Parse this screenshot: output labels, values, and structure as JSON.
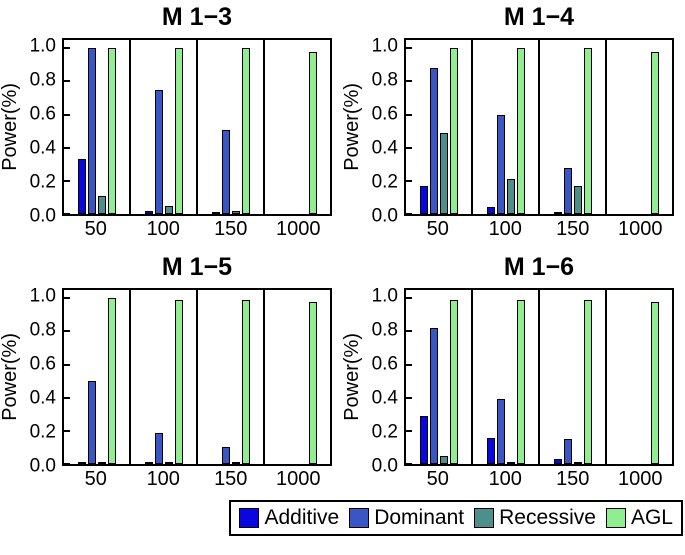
{
  "legend": {
    "items": [
      {
        "label": "Additive",
        "color": "#0a06e0"
      },
      {
        "label": "Dominant",
        "color": "#3a55c4"
      },
      {
        "label": "Recessive",
        "color": "#4d8f8d"
      },
      {
        "label": "AGL",
        "color": "#90ee90"
      }
    ]
  },
  "chart_data": [
    {
      "type": "bar",
      "title": "M 1−3",
      "ylabel": "Power(%)",
      "categories": [
        "50",
        "100",
        "150",
        "1000"
      ],
      "ylim": [
        0,
        1.05
      ],
      "yticks": [
        0.0,
        0.2,
        0.4,
        0.6,
        0.8,
        1.0
      ],
      "series": [
        {
          "name": "Additive",
          "color": "#0a06e0",
          "values": [
            0.33,
            0.02,
            0.01,
            0.0
          ]
        },
        {
          "name": "Dominant",
          "color": "#3a55c4",
          "values": [
            1.0,
            0.75,
            0.51,
            0.0
          ]
        },
        {
          "name": "Recessive",
          "color": "#4d8f8d",
          "values": [
            0.11,
            0.05,
            0.02,
            0.0
          ]
        },
        {
          "name": "AGL",
          "color": "#90ee90",
          "values": [
            1.0,
            1.0,
            1.0,
            0.98
          ]
        }
      ]
    },
    {
      "type": "bar",
      "title": "M 1−4",
      "ylabel": "Power(%)",
      "categories": [
        "50",
        "100",
        "150",
        "1000"
      ],
      "ylim": [
        0,
        1.05
      ],
      "yticks": [
        0.0,
        0.2,
        0.4,
        0.6,
        0.8,
        1.0
      ],
      "series": [
        {
          "name": "Additive",
          "color": "#0a06e0",
          "values": [
            0.17,
            0.04,
            0.01,
            0.0
          ]
        },
        {
          "name": "Dominant",
          "color": "#3a55c4",
          "values": [
            0.88,
            0.6,
            0.28,
            0.0
          ]
        },
        {
          "name": "Recessive",
          "color": "#4d8f8d",
          "values": [
            0.49,
            0.21,
            0.17,
            0.0
          ]
        },
        {
          "name": "AGL",
          "color": "#90ee90",
          "values": [
            1.0,
            1.0,
            1.0,
            0.98
          ]
        }
      ]
    },
    {
      "type": "bar",
      "title": "M 1−5",
      "ylabel": "Power(%)",
      "categories": [
        "50",
        "100",
        "150",
        "1000"
      ],
      "ylim": [
        0,
        1.05
      ],
      "yticks": [
        0.0,
        0.2,
        0.4,
        0.6,
        0.8,
        1.0
      ],
      "series": [
        {
          "name": "Additive",
          "color": "#0a06e0",
          "values": [
            0.01,
            0.01,
            0.0,
            0.0
          ]
        },
        {
          "name": "Dominant",
          "color": "#3a55c4",
          "values": [
            0.5,
            0.19,
            0.1,
            0.0
          ]
        },
        {
          "name": "Recessive",
          "color": "#4d8f8d",
          "values": [
            0.01,
            0.01,
            0.01,
            0.0
          ]
        },
        {
          "name": "AGL",
          "color": "#90ee90",
          "values": [
            1.0,
            0.99,
            0.99,
            0.98
          ]
        }
      ]
    },
    {
      "type": "bar",
      "title": "M 1−6",
      "ylabel": "Power(%)",
      "categories": [
        "50",
        "100",
        "150",
        "1000"
      ],
      "ylim": [
        0,
        1.05
      ],
      "yticks": [
        0.0,
        0.2,
        0.4,
        0.6,
        0.8,
        1.0
      ],
      "series": [
        {
          "name": "Additive",
          "color": "#0a06e0",
          "values": [
            0.29,
            0.16,
            0.03,
            0.0
          ]
        },
        {
          "name": "Dominant",
          "color": "#3a55c4",
          "values": [
            0.82,
            0.39,
            0.15,
            0.0
          ]
        },
        {
          "name": "Recessive",
          "color": "#4d8f8d",
          "values": [
            0.05,
            0.01,
            0.01,
            0.0
          ]
        },
        {
          "name": "AGL",
          "color": "#90ee90",
          "values": [
            0.99,
            0.99,
            0.99,
            0.98
          ]
        }
      ]
    }
  ]
}
